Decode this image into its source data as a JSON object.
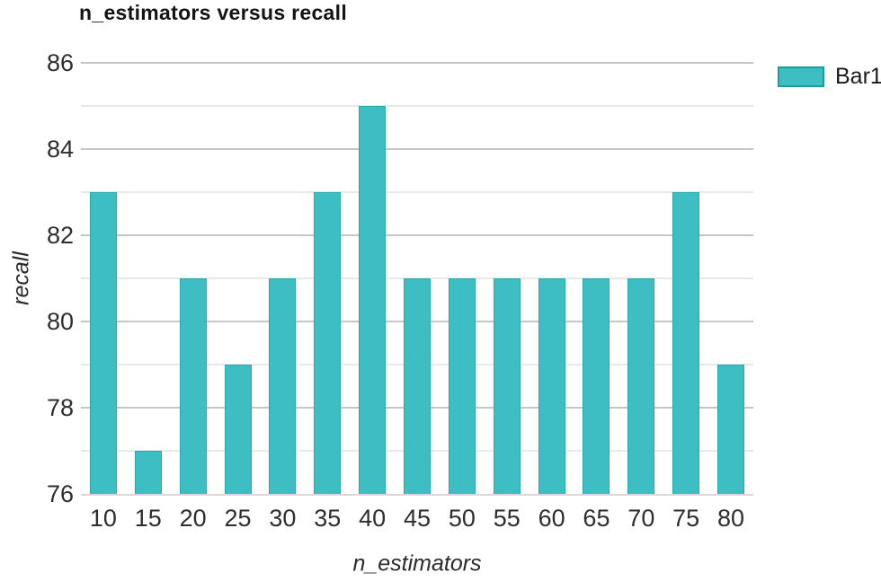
{
  "chart_data": {
    "type": "bar",
    "title": "n_estimators versus recall",
    "xlabel": "n_estimators",
    "ylabel": "recall",
    "categories": [
      "10",
      "15",
      "20",
      "25",
      "30",
      "35",
      "40",
      "45",
      "50",
      "55",
      "60",
      "65",
      "70",
      "75",
      "80"
    ],
    "values": [
      83,
      77,
      81,
      79,
      81,
      83,
      85,
      81,
      81,
      81,
      81,
      81,
      81,
      83,
      79
    ],
    "legend": {
      "label": "Bar1",
      "position": "top-right"
    },
    "ylim": [
      76,
      86
    ],
    "yticks": [
      76,
      78,
      80,
      82,
      84,
      86
    ],
    "grid": {
      "horizontal": true,
      "minor_step": 1,
      "major_step": 2
    },
    "colors": {
      "bar_fill": "#3cbec2",
      "bar_border": "#28a9ae",
      "legend_swatch_border": "#1d9ba1",
      "grid_major": "#c6c6c6",
      "grid_minor": "#e9e9e9",
      "baseline": "#dcd6d6",
      "tick_text": "#2e2e2e",
      "title_text": "#141414"
    }
  }
}
